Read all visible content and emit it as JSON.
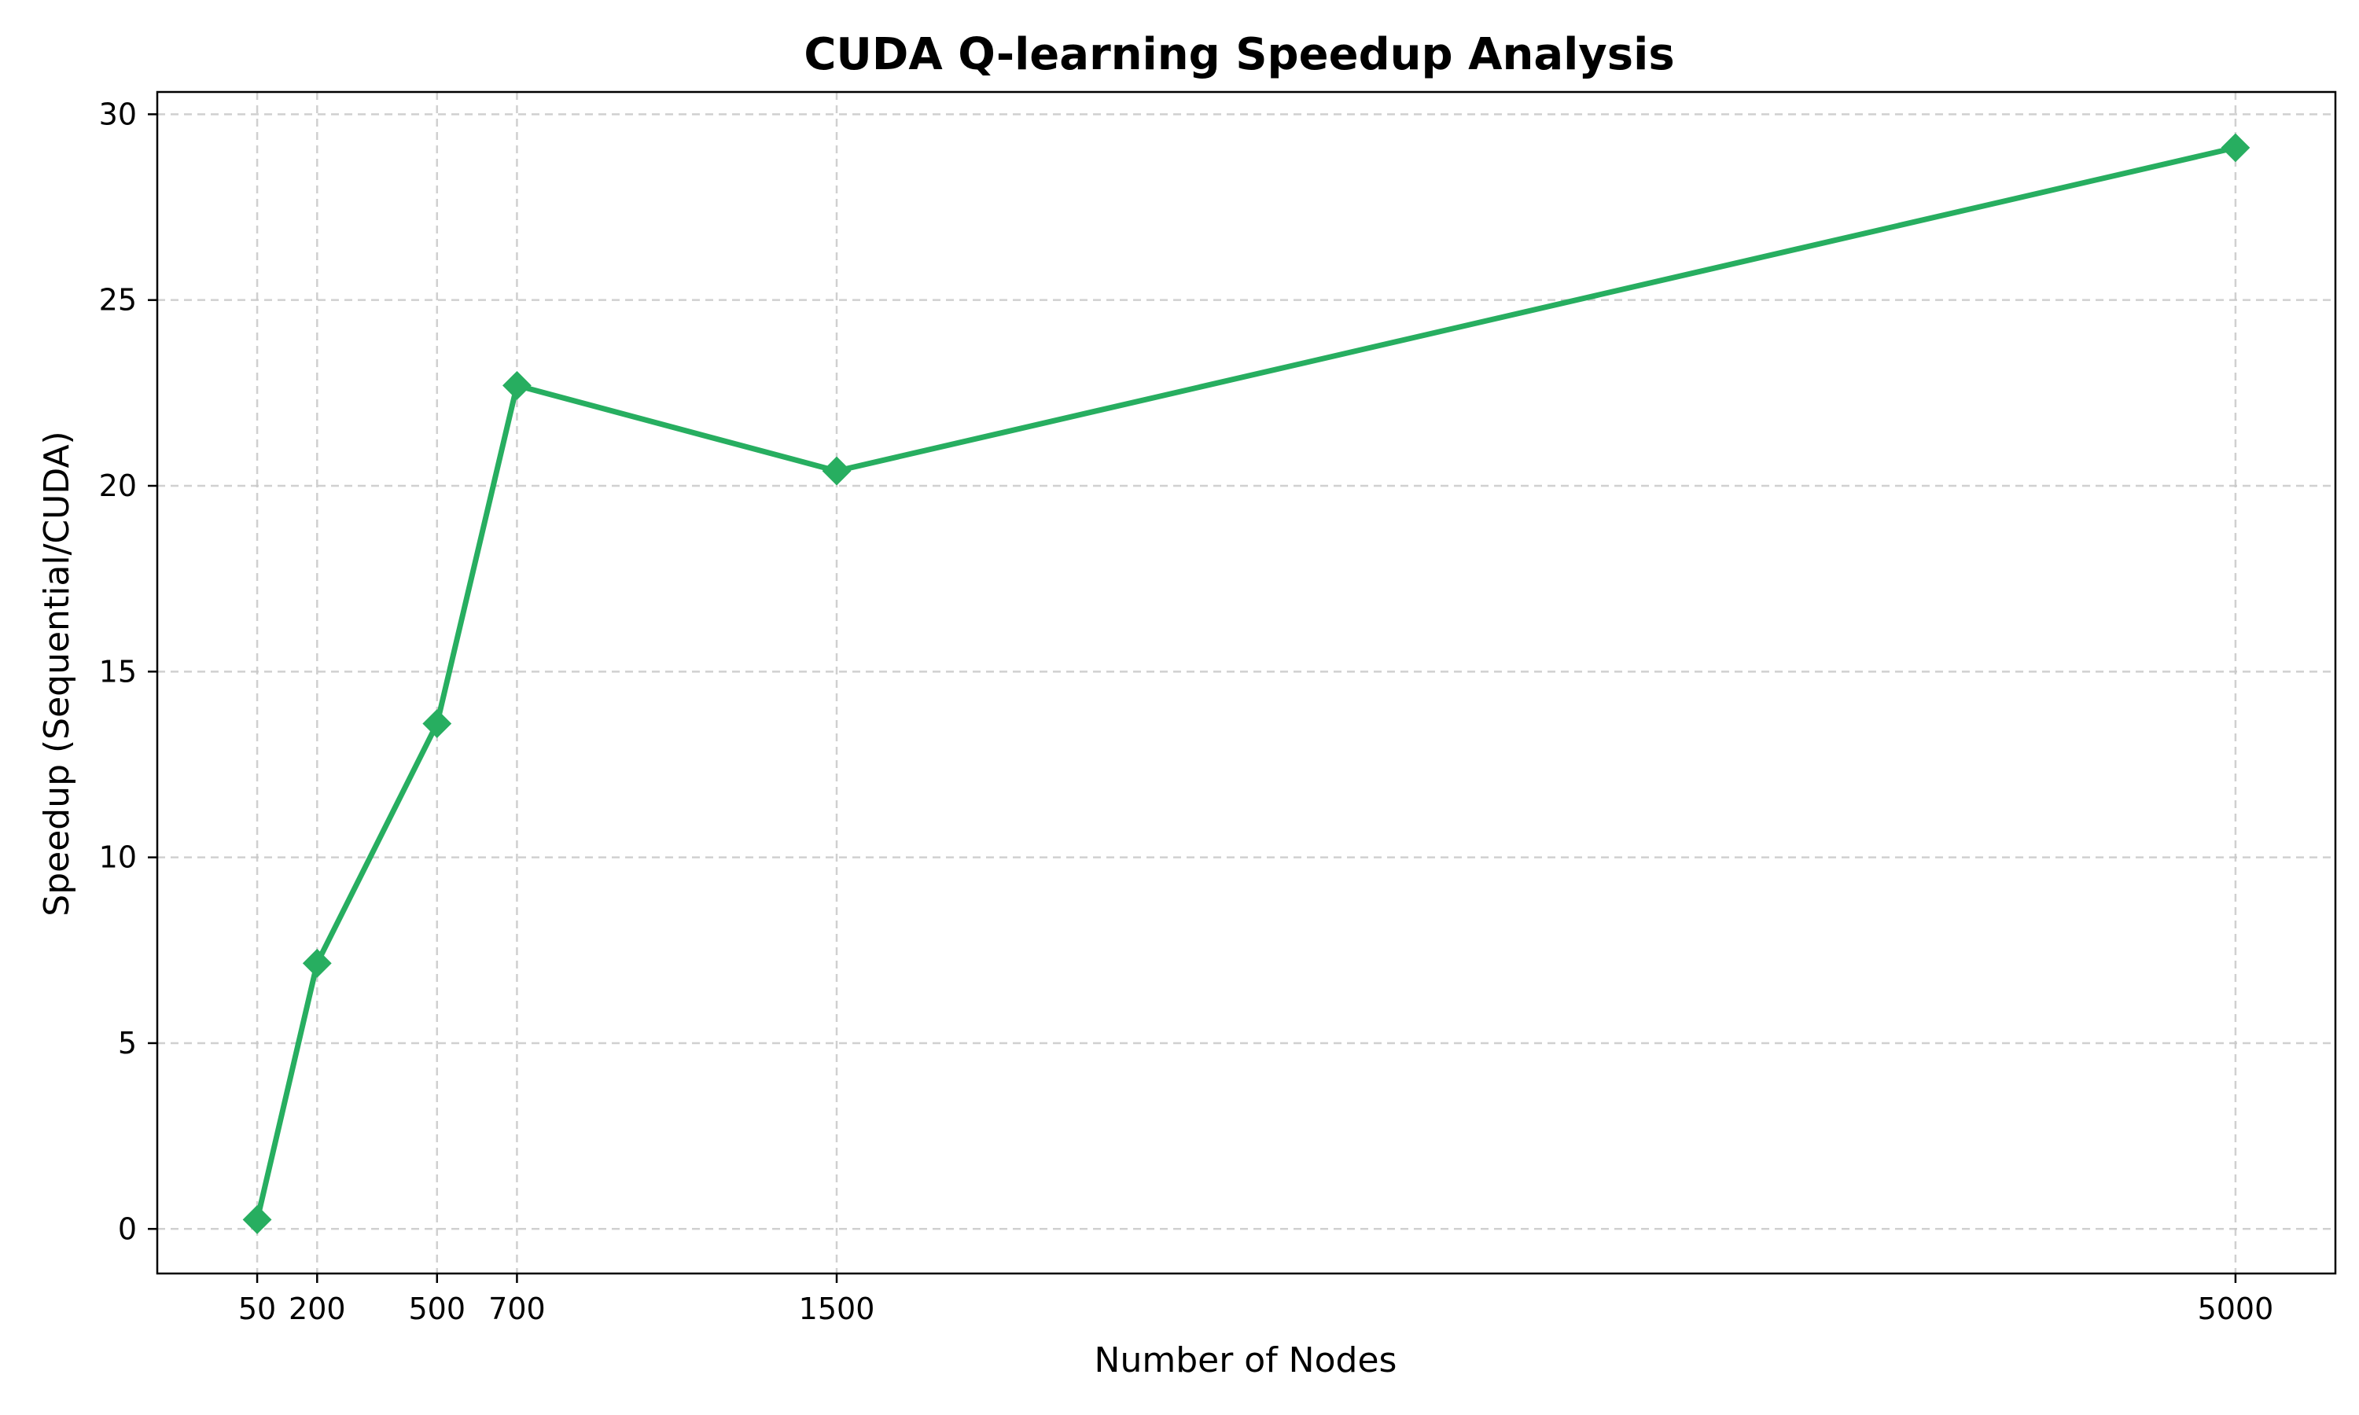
{
  "chart_data": {
    "type": "line",
    "title": "CUDA Q-learning Speedup Analysis",
    "xlabel": "Number of Nodes",
    "ylabel": "Speedup (Sequential/CUDA)",
    "x": [
      50,
      200,
      500,
      700,
      1500,
      5000
    ],
    "x_ticks": [
      "50",
      "200",
      "500",
      "700",
      "1500",
      "5000"
    ],
    "y_ticks": [
      "0",
      "5",
      "10",
      "15",
      "20",
      "25",
      "30"
    ],
    "xlim": [
      -200,
      5250
    ],
    "ylim": [
      -1.2,
      30.6
    ],
    "grid": true,
    "series": [
      {
        "values": [
          0.25,
          7.15,
          13.6,
          22.7,
          20.4,
          29.1
        ],
        "color": "#27ae60",
        "marker": "diamond"
      }
    ]
  }
}
